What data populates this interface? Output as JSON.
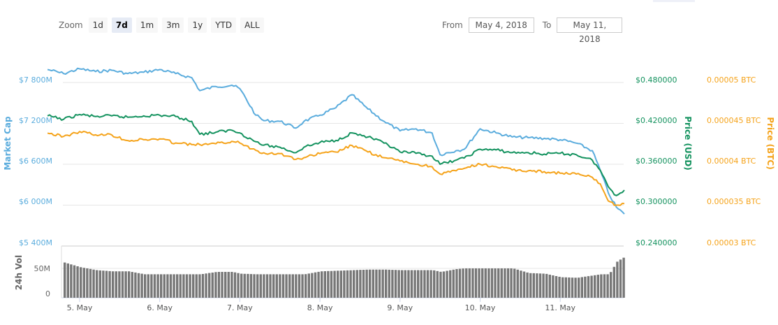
{
  "toolbar": {
    "zoom_label": "Zoom",
    "ranges": [
      {
        "label": "1d",
        "active": false
      },
      {
        "label": "7d",
        "active": true
      },
      {
        "label": "1m",
        "active": false
      },
      {
        "label": "3m",
        "active": false
      },
      {
        "label": "1y",
        "active": false
      },
      {
        "label": "YTD",
        "active": false
      },
      {
        "label": "ALL",
        "active": false
      }
    ],
    "from_label": "From",
    "from_value": "May 4, 2018",
    "to_label": "To",
    "to_value": "May 11, 2018"
  },
  "colors": {
    "market_cap": "#5aacdd",
    "price_usd": "#13925e",
    "price_btc": "#f5a31a",
    "volume": "#777777",
    "grid": "#e6e6e6"
  },
  "chart_data": [
    {
      "type": "line",
      "title": "",
      "xlabel": "",
      "x_ticks": [
        "5. May",
        "6. May",
        "7. May",
        "8. May",
        "9. May",
        "10. May",
        "11. May"
      ],
      "x_range": [
        "May 4, 2018",
        "May 11, 2018"
      ],
      "axes": [
        {
          "id": "market_cap",
          "label": "Market Cap",
          "position": "left",
          "ticks": [
            "$5 400M",
            "$6 000M",
            "$6 600M",
            "$7 200M",
            "$7 800M"
          ],
          "range": [
            5400,
            7800
          ],
          "unit": "USD millions"
        },
        {
          "id": "price_usd",
          "label": "Price (USD)",
          "position": "right",
          "ticks": [
            "$0.240000",
            "$0.300000",
            "$0.360000",
            "$0.420000",
            "$0.480000"
          ],
          "range": [
            0.24,
            0.48
          ]
        },
        {
          "id": "price_btc",
          "label": "Price (BTC)",
          "position": "right",
          "ticks": [
            "0.00003 BTC",
            "0.000035 BTC",
            "0.00004 BTC",
            "0.000045 BTC",
            "0.00005 BTC"
          ],
          "range": [
            3e-05,
            5e-05
          ]
        }
      ],
      "x": [
        4.6,
        4.8,
        5.0,
        5.2,
        5.4,
        5.6,
        5.8,
        6.0,
        6.2,
        6.4,
        6.5,
        6.7,
        6.9,
        7.0,
        7.2,
        7.3,
        7.5,
        7.7,
        7.8,
        8.0,
        8.2,
        8.4,
        8.6,
        8.8,
        9.0,
        9.2,
        9.4,
        9.5,
        9.7,
        9.8,
        10.0,
        10.2,
        10.4,
        10.6,
        10.8,
        11.0,
        11.2,
        11.4,
        11.5,
        11.6,
        11.7,
        11.8
      ],
      "series": [
        {
          "name": "Market Cap",
          "axis": "market_cap",
          "values": [
            7990,
            7930,
            8000,
            7960,
            7980,
            7930,
            7950,
            7990,
            7930,
            7870,
            7680,
            7740,
            7760,
            7710,
            7320,
            7240,
            7230,
            7130,
            7230,
            7320,
            7430,
            7620,
            7410,
            7230,
            7090,
            7120,
            7060,
            6740,
            6800,
            6820,
            7120,
            7060,
            7000,
            6990,
            6980,
            6960,
            6910,
            6800,
            6510,
            6180,
            5970,
            5870
          ]
        },
        {
          "name": "Price (USD)",
          "axis": "price_usd",
          "values": [
            0.431,
            0.426,
            0.433,
            0.43,
            0.431,
            0.429,
            0.431,
            0.432,
            0.43,
            0.423,
            0.404,
            0.407,
            0.41,
            0.406,
            0.393,
            0.388,
            0.385,
            0.377,
            0.385,
            0.392,
            0.395,
            0.406,
            0.4,
            0.391,
            0.378,
            0.376,
            0.372,
            0.36,
            0.366,
            0.369,
            0.382,
            0.381,
            0.377,
            0.377,
            0.375,
            0.376,
            0.374,
            0.366,
            0.351,
            0.327,
            0.314,
            0.322
          ]
        },
        {
          "name": "Price (BTC)",
          "axis": "price_btc",
          "values": [
            4.38e-05,
            4.34e-05,
            4.4e-05,
            4.36e-05,
            4.36e-05,
            4.29e-05,
            4.3e-05,
            4.31e-05,
            4.26e-05,
            4.24e-05,
            4.24e-05,
            4.25e-05,
            4.28e-05,
            4.26e-05,
            4.17e-05,
            4.14e-05,
            4.13e-05,
            4.06e-05,
            4.08e-05,
            4.13e-05,
            4.15e-05,
            4.23e-05,
            4.15e-05,
            4.08e-05,
            4.04e-05,
            4e-05,
            3.97e-05,
            3.88e-05,
            3.92e-05,
            3.95e-05,
            4e-05,
            3.97e-05,
            3.93e-05,
            3.92e-05,
            3.91e-05,
            3.89e-05,
            3.88e-05,
            3.84e-05,
            3.76e-05,
            3.55e-05,
            3.5e-05,
            3.52e-05
          ]
        }
      ],
      "grid": true,
      "legend": null
    },
    {
      "type": "bar",
      "title": "",
      "ylabel": "24h Vol",
      "y_ticks": [
        "0",
        "50M"
      ],
      "ylim": [
        0,
        75
      ],
      "unit": "USD millions",
      "x_ticks": [
        "5. May",
        "6. May",
        "7. May",
        "8. May",
        "9. May",
        "10. May",
        "11. May"
      ],
      "x": [
        4.6,
        4.8,
        5.0,
        5.2,
        5.4,
        5.6,
        5.8,
        6.0,
        6.2,
        6.4,
        6.5,
        6.7,
        6.9,
        7.0,
        7.2,
        7.3,
        7.5,
        7.7,
        7.8,
        8.0,
        8.2,
        8.4,
        8.6,
        8.8,
        9.0,
        9.2,
        9.4,
        9.5,
        9.7,
        9.8,
        10.0,
        10.2,
        10.4,
        10.6,
        10.8,
        11.0,
        11.2,
        11.4,
        11.5,
        11.6,
        11.7,
        11.8
      ],
      "values": [
        65,
        60,
        52,
        47,
        45,
        45,
        40,
        40,
        40,
        40,
        40,
        44,
        44,
        41,
        40,
        40,
        40,
        40,
        40,
        45,
        46,
        47,
        48,
        48,
        47,
        47,
        47,
        44,
        49,
        50,
        50,
        50,
        50,
        42,
        41,
        35,
        34,
        38,
        40,
        40,
        62,
        70
      ]
    }
  ],
  "labels": {
    "market_cap_axis": "Market Cap",
    "price_usd_axis": "Price (USD)",
    "price_btc_axis": "Price (BTC)",
    "volume_axis": "24h Vol"
  }
}
